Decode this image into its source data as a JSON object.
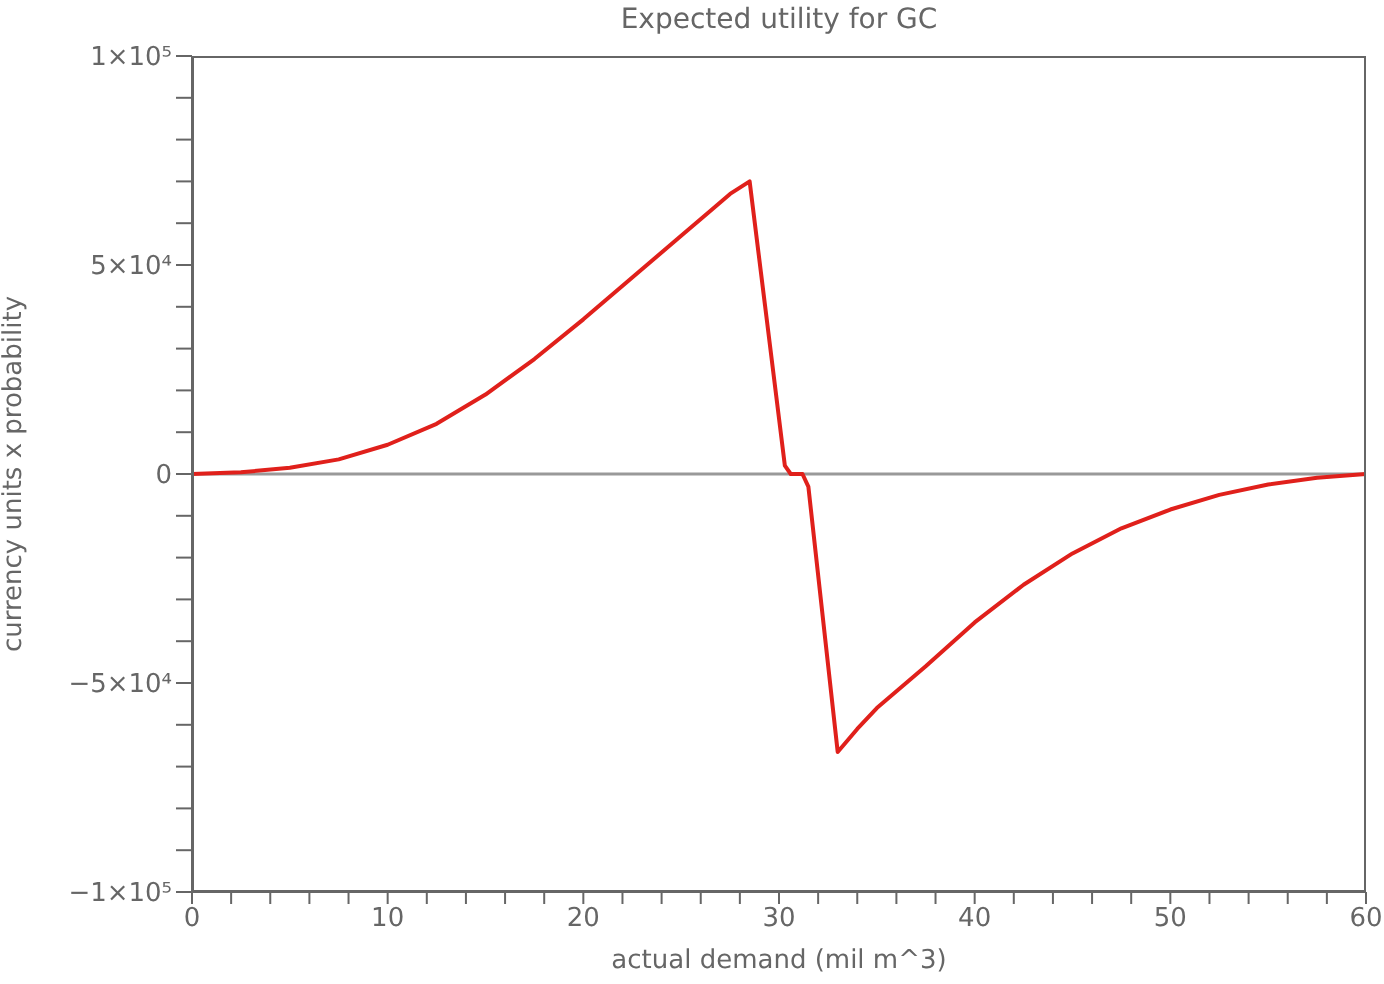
{
  "chart_data": {
    "type": "line",
    "title": "Expected utility for GC",
    "xlabel": "actual demand (mil m^3)",
    "ylabel": "currency units x probability",
    "x": [
      0,
      2.5,
      5,
      7.5,
      10,
      12.5,
      15,
      17.5,
      20,
      22.5,
      25,
      26.5,
      27.5,
      28.5,
      30.3,
      30.6,
      31.2,
      31.5,
      33,
      34,
      35,
      37.5,
      40,
      42.5,
      45,
      47.5,
      50,
      52.5,
      55,
      57.5,
      60
    ],
    "series": [
      {
        "color": "#e0201b",
        "values": [
          0,
          400,
          1500,
          3500,
          7000,
          12000,
          19000,
          27500,
          37000,
          47000,
          57000,
          63000,
          67000,
          70000,
          2000,
          0,
          0,
          -3000,
          -66500,
          -61000,
          -56000,
          -46000,
          -35500,
          -26500,
          -19000,
          -13000,
          -8500,
          -5000,
          -2500,
          -900,
          0
        ]
      }
    ],
    "xlim": [
      0,
      60
    ],
    "xticks": [
      0,
      {
        "value": 2,
        "label": null
      },
      {
        "value": 4,
        "label": null
      },
      {
        "value": 6,
        "label": null
      },
      {
        "value": 8,
        "label": null
      },
      10,
      {
        "value": 12,
        "label": null
      },
      {
        "value": 14,
        "label": null
      },
      {
        "value": 16,
        "label": null
      },
      {
        "value": 18,
        "label": null
      },
      20,
      {
        "value": 22,
        "label": null
      },
      {
        "value": 24,
        "label": null
      },
      {
        "value": 26,
        "label": null
      },
      {
        "value": 28,
        "label": null
      },
      30,
      {
        "value": 32,
        "label": null
      },
      {
        "value": 34,
        "label": null
      },
      {
        "value": 36,
        "label": null
      },
      {
        "value": 38,
        "label": null
      },
      40,
      {
        "value": 42,
        "label": null
      },
      {
        "value": 44,
        "label": null
      },
      {
        "value": 46,
        "label": null
      },
      {
        "value": 48,
        "label": null
      },
      50,
      {
        "value": 52,
        "label": null
      },
      {
        "value": 54,
        "label": null
      },
      {
        "value": 56,
        "label": null
      },
      {
        "value": 58,
        "label": null
      },
      60
    ],
    "ylim": [
      -100000,
      100000
    ],
    "yticks": [
      {
        "value": -100000,
        "label": "−1×10⁵"
      },
      {
        "value": -90000,
        "label": null
      },
      {
        "value": -80000,
        "label": null
      },
      {
        "value": -70000,
        "label": null
      },
      {
        "value": -60000,
        "label": null
      },
      {
        "value": -50000,
        "label": "−5×10⁴"
      },
      {
        "value": -40000,
        "label": null
      },
      {
        "value": -30000,
        "label": null
      },
      {
        "value": -20000,
        "label": null
      },
      {
        "value": -10000,
        "label": null
      },
      {
        "value": 0,
        "label": "0"
      },
      {
        "value": 10000,
        "label": null
      },
      {
        "value": 20000,
        "label": null
      },
      {
        "value": 30000,
        "label": null
      },
      {
        "value": 40000,
        "label": null
      },
      {
        "value": 50000,
        "label": "5×10⁴"
      },
      {
        "value": 60000,
        "label": null
      },
      {
        "value": 70000,
        "label": null
      },
      {
        "value": 80000,
        "label": null
      },
      {
        "value": 90000,
        "label": null
      },
      {
        "value": 100000,
        "label": "1×10⁵"
      }
    ],
    "ref_lines": [
      {
        "axis": "y",
        "value": 0,
        "color": "#999999"
      }
    ],
    "grid": false,
    "legend": false,
    "marker": "none",
    "line_style": "solid"
  }
}
